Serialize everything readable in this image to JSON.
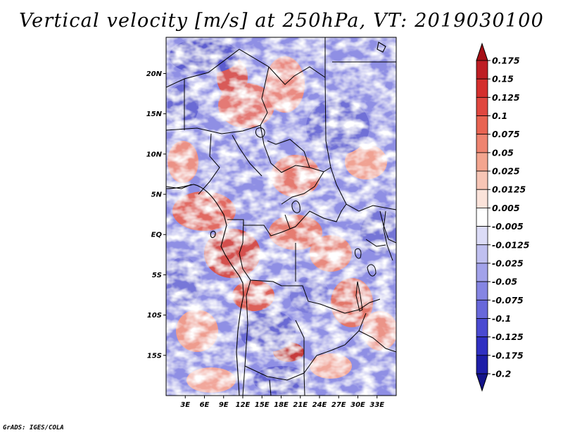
{
  "title": "Vertical velocity [m/s] at 250hPa, VT: 2019030100",
  "credit": "GrADS: IGES/COLA",
  "map": {
    "lat_labels": [
      "20N",
      "15N",
      "10N",
      "5N",
      "EQ",
      "5S",
      "10S",
      "15S"
    ],
    "lat_values": [
      20,
      15,
      10,
      5,
      0,
      -5,
      -10,
      -15
    ],
    "lon_labels": [
      "3E",
      "6E",
      "9E",
      "12E",
      "15E",
      "18E",
      "21E",
      "24E",
      "27E",
      "30E",
      "33E"
    ],
    "lon_values": [
      3,
      6,
      9,
      12,
      15,
      18,
      21,
      24,
      27,
      30,
      33
    ],
    "lon_range": [
      0,
      36
    ],
    "lat_range": [
      -20,
      24.5
    ]
  },
  "colorbar": {
    "labels": [
      "0.175",
      "0.15",
      "0.125",
      "0.1",
      "0.075",
      "0.05",
      "0.025",
      "0.0125",
      "0.005",
      "-0.005",
      "-0.0125",
      "-0.025",
      "-0.05",
      "-0.075",
      "-0.1",
      "-0.125",
      "-0.175",
      "-0.2"
    ],
    "colors": [
      "#a50f15",
      "#be1e24",
      "#d42f2d",
      "#e0473f",
      "#e86452",
      "#ee8470",
      "#f3a58f",
      "#f7c5b5",
      "#fbe3da",
      "#ffffff",
      "#dcdcf7",
      "#c0c0f0",
      "#a2a2ea",
      "#8585e3",
      "#6868da",
      "#4a4ad1",
      "#3030c2",
      "#1e1ea8",
      "#14148a"
    ]
  }
}
